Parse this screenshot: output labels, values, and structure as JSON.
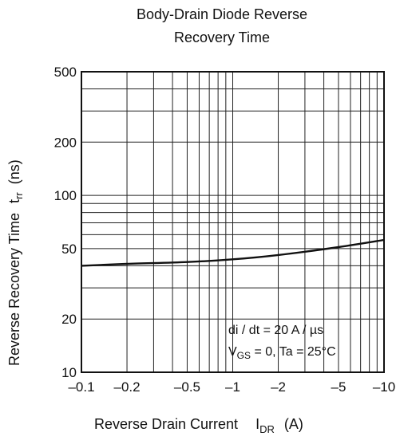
{
  "chart_data": {
    "type": "line",
    "title_lines": [
      "Body-Drain Diode Reverse",
      "Recovery Time"
    ],
    "xlabel": "Reverse Drain Current",
    "xlabel_symbol": "I",
    "xlabel_subscript": "DR",
    "xlabel_unit": "(A)",
    "ylabel": "Reverse Recovery Time",
    "ylabel_symbol": "t",
    "ylabel_subscript": "rr",
    "ylabel_unit": "(ns)",
    "x_scale": "log",
    "y_scale": "log",
    "xlim": [
      -0.1,
      -10
    ],
    "ylim": [
      10,
      500
    ],
    "x_ticks": [
      {
        "value": 0.1,
        "label": "–0.1"
      },
      {
        "value": 0.2,
        "label": "–0.2"
      },
      {
        "value": 0.5,
        "label": "–0.5"
      },
      {
        "value": 1,
        "label": "–1"
      },
      {
        "value": 2,
        "label": "–2"
      },
      {
        "value": 5,
        "label": "–5"
      },
      {
        "value": 10,
        "label": "–10"
      }
    ],
    "y_ticks": [
      {
        "value": 10,
        "label": "10"
      },
      {
        "value": 20,
        "label": "20"
      },
      {
        "value": 50,
        "label": "50"
      },
      {
        "value": 100,
        "label": "100"
      },
      {
        "value": 200,
        "label": "200"
      },
      {
        "value": 500,
        "label": "500"
      }
    ],
    "grid": true,
    "series": [
      {
        "x": [
          -0.1,
          -0.2,
          -0.5,
          -1,
          -2,
          -5,
          -10
        ],
        "y": [
          40,
          41,
          42,
          43.5,
          46,
          51,
          56
        ]
      }
    ],
    "annotation_line1": "di / dt = 20 A / µs",
    "annotation_line2_symbol": "V",
    "annotation_line2_subscript": "GS",
    "annotation_line2_rest": " = 0, Ta = 25°C"
  }
}
